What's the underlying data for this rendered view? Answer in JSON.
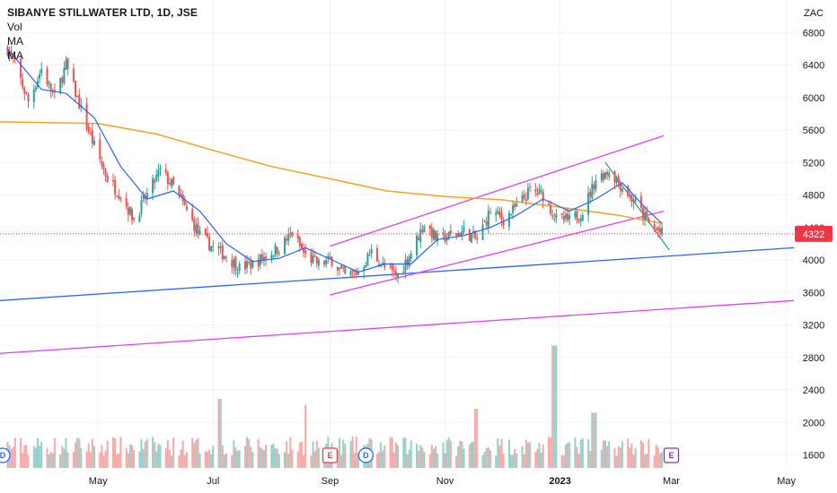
{
  "header": {
    "title": "SIBANYE STILLWATER LTD, 1D, JSE",
    "indicators": [
      "Vol",
      "MA",
      "MA"
    ]
  },
  "price_axis": {
    "currency": "ZAC",
    "current_price": "4322",
    "current_color": "#f23645"
  },
  "time_axis": {
    "labels": [
      "May",
      "Jul",
      "Sep",
      "Nov",
      "2023",
      "Mar",
      "May"
    ],
    "bold_labels": [
      "2023"
    ]
  },
  "events": [
    {
      "type": "dividend",
      "letter": "D",
      "color": "#2962ff"
    },
    {
      "type": "earnings",
      "letter": "E",
      "color": "#f23645"
    },
    {
      "type": "dividend",
      "letter": "D",
      "color": "#2962ff"
    },
    {
      "type": "earnings",
      "letter": "E",
      "color": "#9c27b0"
    }
  ],
  "chart_data": {
    "type": "candlestick",
    "symbol": "SIBANYE STILLWATER LTD",
    "interval": "1D",
    "exchange": "JSE",
    "currency": "ZAC",
    "yticks": [
      1600,
      2000,
      2400,
      2800,
      3200,
      3600,
      4000,
      4400,
      4800,
      5200,
      5600,
      6000,
      6400,
      6800
    ],
    "ylim": [
      1440,
      7200
    ],
    "xlim": [
      "2022-03-10",
      "2023-05-05"
    ],
    "last_price": 4322,
    "colors": {
      "up": "#26a69a",
      "down": "#ef5350",
      "ma_fast": "#2962ff",
      "ma_slow": "#f7a21b",
      "trend_pink": "#e040fb",
      "trend_blue": "#2962ff",
      "trend_green": "#26a69a"
    },
    "price_path": [
      [
        "2022-03-14",
        6600
      ],
      [
        "2022-03-18",
        6400
      ],
      [
        "2022-03-25",
        5950
      ],
      [
        "2022-04-01",
        6350
      ],
      [
        "2022-04-08",
        6000
      ],
      [
        "2022-04-14",
        6400
      ],
      [
        "2022-04-22",
        5850
      ],
      [
        "2022-04-29",
        5400
      ],
      [
        "2022-05-06",
        5000
      ],
      [
        "2022-05-13",
        4800
      ],
      [
        "2022-05-20",
        4500
      ],
      [
        "2022-05-27",
        4800
      ],
      [
        "2022-06-03",
        5100
      ],
      [
        "2022-06-10",
        4900
      ],
      [
        "2022-06-17",
        4600
      ],
      [
        "2022-06-24",
        4300
      ],
      [
        "2022-07-01",
        4150
      ],
      [
        "2022-07-08",
        4050
      ],
      [
        "2022-07-15",
        3900
      ],
      [
        "2022-07-22",
        3950
      ],
      [
        "2022-07-29",
        4050
      ],
      [
        "2022-08-05",
        4150
      ],
      [
        "2022-08-12",
        4320
      ],
      [
        "2022-08-19",
        4050
      ],
      [
        "2022-08-26",
        3950
      ],
      [
        "2022-09-02",
        4000
      ],
      [
        "2022-09-09",
        3800
      ],
      [
        "2022-09-16",
        3850
      ],
      [
        "2022-09-23",
        4100
      ],
      [
        "2022-09-30",
        3900
      ],
      [
        "2022-10-07",
        3800
      ],
      [
        "2022-10-14",
        4100
      ],
      [
        "2022-10-21",
        4450
      ],
      [
        "2022-10-28",
        4250
      ],
      [
        "2022-11-04",
        4300
      ],
      [
        "2022-11-11",
        4350
      ],
      [
        "2022-11-18",
        4250
      ],
      [
        "2022-11-25",
        4600
      ],
      [
        "2022-12-02",
        4500
      ],
      [
        "2022-12-09",
        4650
      ],
      [
        "2022-12-16",
        4850
      ],
      [
        "2022-12-23",
        4800
      ],
      [
        "2022-12-30",
        4500
      ],
      [
        "2023-01-06",
        4480
      ],
      [
        "2023-01-13",
        4600
      ],
      [
        "2023-01-20",
        5000
      ],
      [
        "2023-01-27",
        5100
      ],
      [
        "2023-02-03",
        4900
      ],
      [
        "2023-02-10",
        4700
      ],
      [
        "2023-02-17",
        4450
      ],
      [
        "2023-02-24",
        4322
      ]
    ],
    "ma_fast_path": [
      [
        "2022-03-14",
        6600
      ],
      [
        "2022-04-01",
        6100
      ],
      [
        "2022-04-14",
        6050
      ],
      [
        "2022-04-29",
        5750
      ],
      [
        "2022-05-13",
        5150
      ],
      [
        "2022-05-27",
        4750
      ],
      [
        "2022-06-10",
        4850
      ],
      [
        "2022-06-24",
        4600
      ],
      [
        "2022-07-08",
        4200
      ],
      [
        "2022-07-22",
        3980
      ],
      [
        "2022-08-05",
        4020
      ],
      [
        "2022-08-19",
        4150
      ],
      [
        "2022-09-02",
        4000
      ],
      [
        "2022-09-16",
        3850
      ],
      [
        "2022-09-30",
        3950
      ],
      [
        "2022-10-14",
        3950
      ],
      [
        "2022-10-28",
        4250
      ],
      [
        "2022-11-11",
        4300
      ],
      [
        "2022-11-25",
        4400
      ],
      [
        "2022-12-09",
        4550
      ],
      [
        "2022-12-23",
        4750
      ],
      [
        "2023-01-06",
        4600
      ],
      [
        "2023-01-20",
        4750
      ],
      [
        "2023-02-03",
        4950
      ],
      [
        "2023-02-17",
        4600
      ],
      [
        "2023-02-24",
        4450
      ]
    ],
    "ma_slow_path": [
      [
        "2022-03-10",
        5700
      ],
      [
        "2022-05-01",
        5680
      ],
      [
        "2022-06-01",
        5550
      ],
      [
        "2022-07-01",
        5350
      ],
      [
        "2022-08-01",
        5150
      ],
      [
        "2022-09-01",
        5000
      ],
      [
        "2022-10-01",
        4850
      ],
      [
        "2022-11-01",
        4780
      ],
      [
        "2022-12-01",
        4740
      ],
      [
        "2023-01-01",
        4650
      ],
      [
        "2023-02-01",
        4550
      ],
      [
        "2023-02-24",
        4450
      ]
    ],
    "trendlines": [
      {
        "color": "#2962ff",
        "from": [
          "2022-03-10",
          3500
        ],
        "to": [
          "2023-05-05",
          4150
        ]
      },
      {
        "color": "#e040fb",
        "from": [
          "2022-03-10",
          2850
        ],
        "to": [
          "2023-05-05",
          3500
        ]
      },
      {
        "color": "#e040fb",
        "from": [
          "2022-09-01",
          4170
        ],
        "to": [
          "2023-02-25",
          5530
        ]
      },
      {
        "color": "#e040fb",
        "from": [
          "2022-09-01",
          3570
        ],
        "to": [
          "2023-02-25",
          4600
        ]
      },
      {
        "color": "#26a69a",
        "from": [
          "2023-01-25",
          5200
        ],
        "to": [
          "2023-02-28",
          4120
        ]
      }
    ],
    "volume_spikes": [
      {
        "date": "2022-07-04",
        "level": 0.35
      },
      {
        "date": "2022-08-20",
        "level": 0.32
      },
      {
        "date": "2022-12-29",
        "level": 0.62
      },
      {
        "date": "2023-01-19",
        "level": 0.28
      },
      {
        "date": "2022-11-18",
        "level": 0.3
      }
    ],
    "volume_end": "2023-02-24"
  }
}
